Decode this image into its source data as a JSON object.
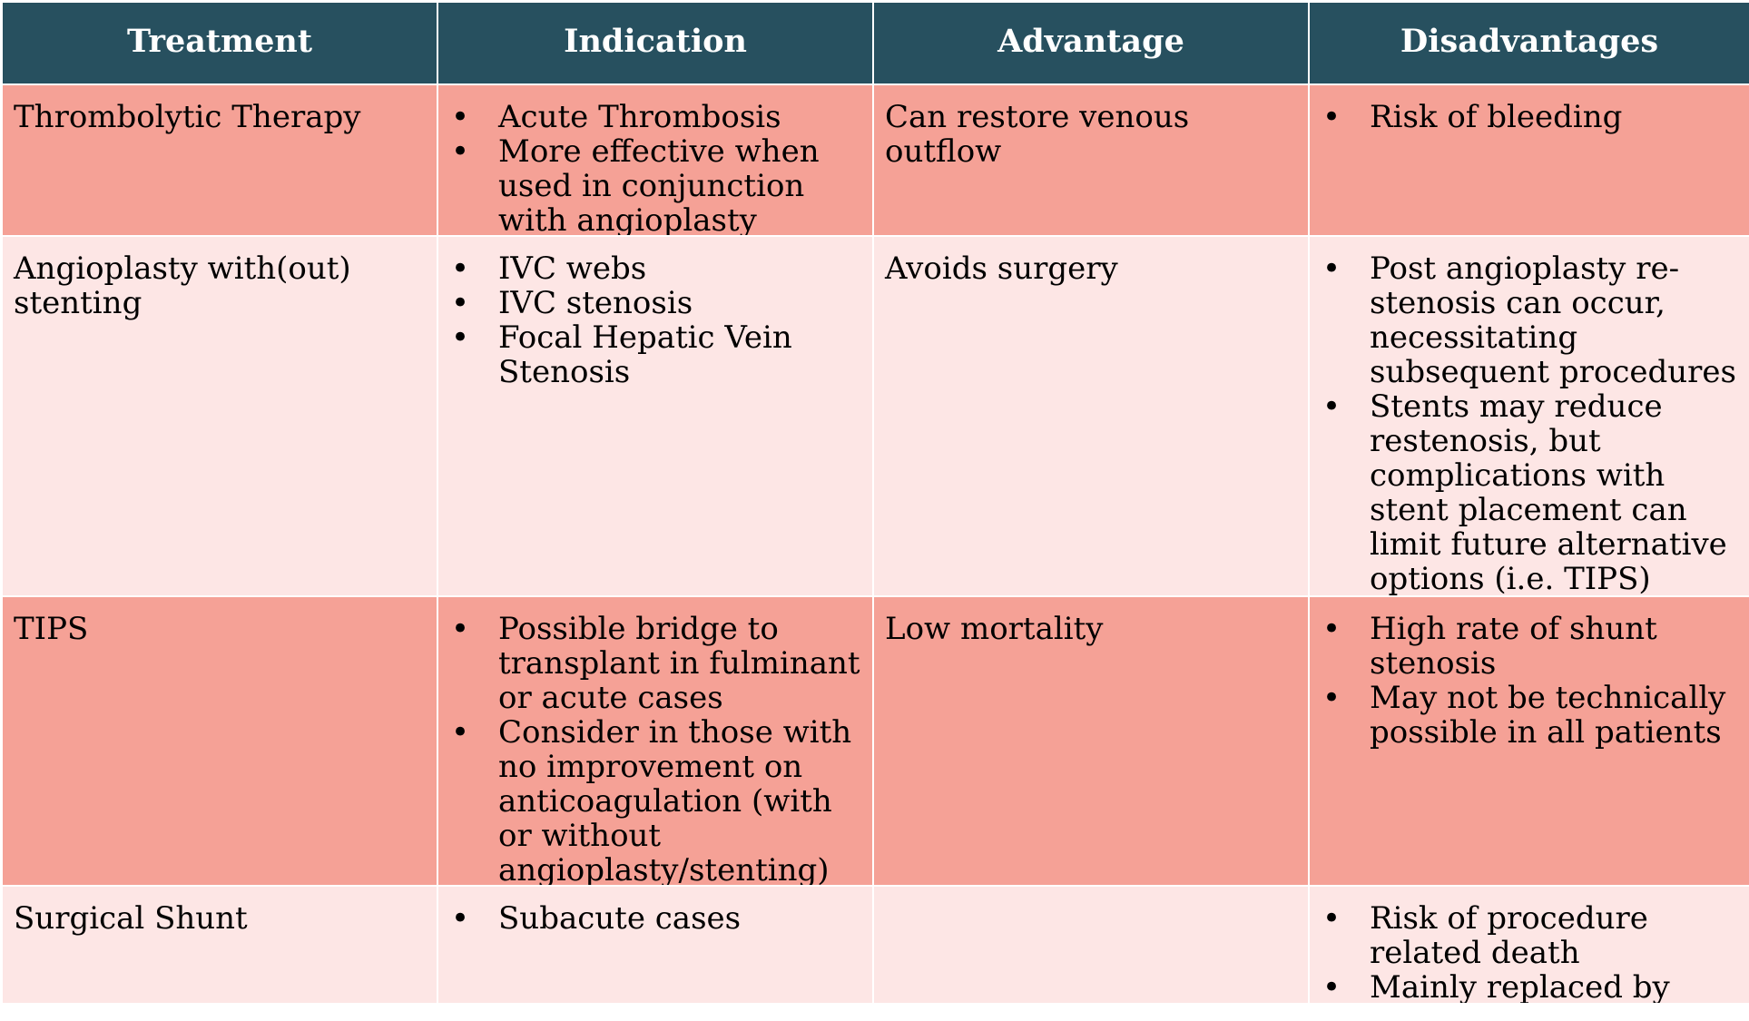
{
  "headers": [
    "Treatment",
    "Indication",
    "Advantage",
    "Disadvantages"
  ],
  "bullet_glyph": "•",
  "rows": [
    {
      "treatment": "Thrombolytic Therapy",
      "indications": [
        "Acute Thrombosis",
        "More effective when used in conjunction with angioplasty"
      ],
      "advantage": "Can restore venous outflow",
      "disadvantages": [
        "Risk of bleeding"
      ]
    },
    {
      "treatment": "Angioplasty with(out) stenting",
      "indications": [
        "IVC webs",
        "IVC stenosis",
        "Focal Hepatic Vein Stenosis"
      ],
      "advantage": "Avoids surgery",
      "disadvantages": [
        "Post angioplasty re-stenosis can occur, necessitating subsequent procedures",
        "Stents may reduce restenosis, but complications with stent placement can limit future alternative options (i.e. TIPS)"
      ]
    },
    {
      "treatment": "TIPS",
      "indications": [
        "Possible bridge to transplant in fulminant or acute cases",
        "Consider in those with no improvement on anticoagulation (with or without angioplasty/stenting)"
      ],
      "advantage": "Low mortality",
      "disadvantages": [
        "High rate of shunt stenosis",
        "May not be technically possible in all patients"
      ]
    },
    {
      "treatment": "Surgical Shunt",
      "indications": [
        "Subacute cases"
      ],
      "advantage": "",
      "disadvantages": [
        "Risk of procedure related death",
        "Mainly replaced by TIPS"
      ]
    }
  ],
  "colors": {
    "header_bg": "#27505f",
    "row_dark": "#f5a196",
    "row_light": "#fde6e5"
  }
}
